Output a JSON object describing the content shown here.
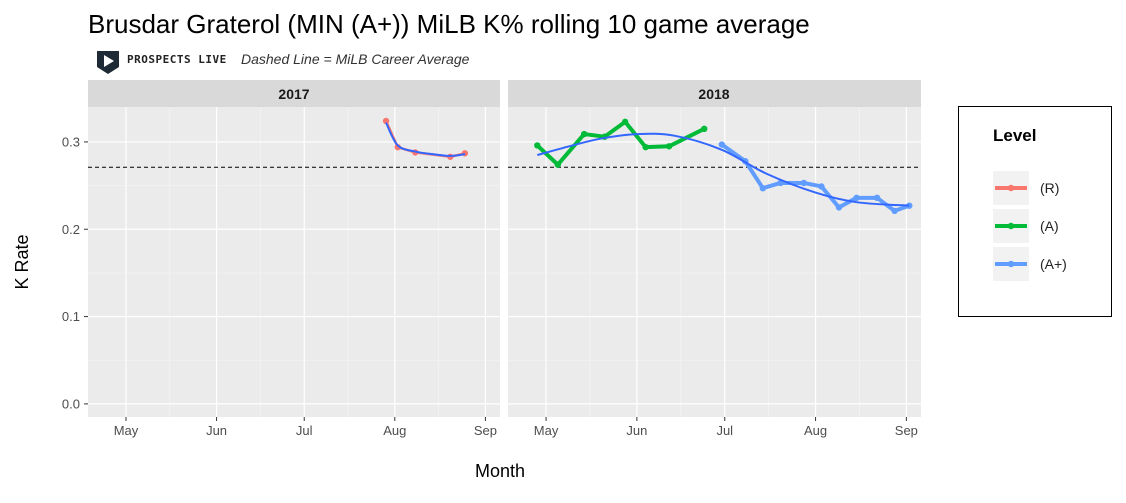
{
  "header": {
    "title": "Brusdar Graterol (MIN (A+)) MiLB K% rolling 10 game average",
    "logo_text": "PROSPECTS LIVE",
    "caption": "Dashed Line = MiLB Career Average"
  },
  "legend": {
    "title": "Level",
    "items": [
      {
        "label": "(R)",
        "color": "#f8766d"
      },
      {
        "label": "(A)",
        "color": "#00ba38"
      },
      {
        "label": "(A+)",
        "color": "#619cff"
      }
    ]
  },
  "chart_data": {
    "type": "line",
    "xlabel": "Month",
    "ylabel": "K Rate",
    "ylim": [
      -0.015,
      0.34
    ],
    "yticks": [
      0.0,
      0.1,
      0.2,
      0.3
    ],
    "ytick_labels": [
      "0.0",
      "0.1",
      "0.2",
      "0.3"
    ],
    "xticks": [
      "May",
      "Jun",
      "Jul",
      "Aug",
      "Sep"
    ],
    "career_average": 0.271,
    "smooth_color": "#3366ff",
    "panels": [
      {
        "strip": "2017",
        "series": [
          {
            "level": "(R)",
            "color": "#f8766d",
            "x": [
              "2017-07-29",
              "2017-08-02",
              "2017-08-08",
              "2017-08-20",
              "2017-08-25"
            ],
            "y": [
              0.324,
              0.294,
              0.288,
              0.283,
              0.287
            ]
          }
        ],
        "smooth": {
          "x": [
            "2017-07-29",
            "2017-08-02",
            "2017-08-08",
            "2017-08-14",
            "2017-08-20",
            "2017-08-25"
          ],
          "y": [
            0.322,
            0.296,
            0.289,
            0.286,
            0.284,
            0.286
          ]
        }
      },
      {
        "strip": "2018",
        "series": [
          {
            "level": "(A)",
            "color": "#00ba38",
            "x": [
              "2018-04-28",
              "2018-05-05",
              "2018-05-14",
              "2018-05-21",
              "2018-05-28",
              "2018-06-04",
              "2018-06-12",
              "2018-06-24"
            ],
            "y": [
              0.296,
              0.274,
              0.309,
              0.306,
              0.323,
              0.294,
              0.295,
              0.315
            ]
          },
          {
            "level": "(A+)",
            "color": "#619cff",
            "x": [
              "2018-06-30",
              "2018-07-08",
              "2018-07-14",
              "2018-07-20",
              "2018-07-28",
              "2018-08-03",
              "2018-08-09",
              "2018-08-15",
              "2018-08-22",
              "2018-08-28",
              "2018-09-02"
            ],
            "y": [
              0.297,
              0.278,
              0.247,
              0.253,
              0.253,
              0.249,
              0.225,
              0.236,
              0.236,
              0.221,
              0.227
            ]
          }
        ],
        "smooth": {
          "x": [
            "2018-04-28",
            "2018-05-10",
            "2018-05-20",
            "2018-06-01",
            "2018-06-14",
            "2018-06-30",
            "2018-07-15",
            "2018-08-01",
            "2018-08-15",
            "2018-09-02"
          ],
          "y": [
            0.285,
            0.296,
            0.304,
            0.309,
            0.307,
            0.291,
            0.264,
            0.242,
            0.231,
            0.227
          ]
        }
      }
    ]
  }
}
